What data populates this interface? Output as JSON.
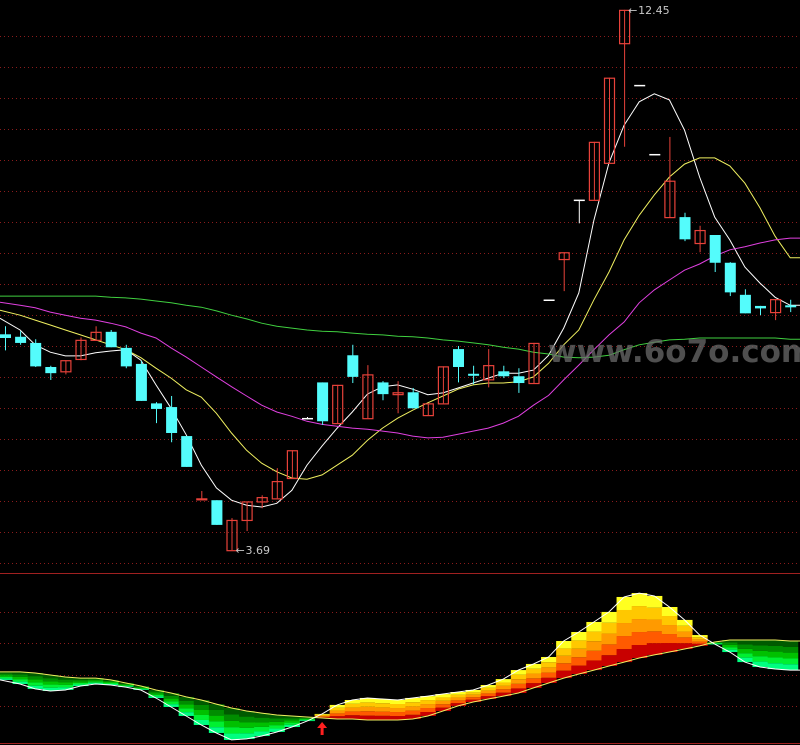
{
  "chart_data": [
    {
      "type": "candlestick",
      "ylim": [
        3.32,
        12.61
      ],
      "grid": true,
      "colors": {
        "up": "#e8423a",
        "down": "#54fcfc",
        "flat": "#ffffff",
        "grid": "#8a1c1c",
        "label": "#c8c8c8"
      },
      "annotations": [
        {
          "label": "12.45",
          "candle": 41,
          "price": 12.45,
          "arrow": "←"
        },
        {
          "label": "3.69",
          "candle": 15,
          "price": 3.69,
          "arrow": "←"
        }
      ],
      "ohlc_order": [
        "open",
        "high",
        "low",
        "close"
      ],
      "candles": [
        [
          7.19,
          7.32,
          6.93,
          7.13
        ],
        [
          7.15,
          7.24,
          7.02,
          7.05
        ],
        [
          7.05,
          7.11,
          6.66,
          6.67
        ],
        [
          6.66,
          6.68,
          6.45,
          6.56
        ],
        [
          6.59,
          6.77,
          6.54,
          6.77
        ],
        [
          6.79,
          7.14,
          6.77,
          7.1
        ],
        [
          7.1,
          7.32,
          7.1,
          7.23
        ],
        [
          7.23,
          7.26,
          6.98,
          6.98
        ],
        [
          6.97,
          7.02,
          6.64,
          6.67
        ],
        [
          6.71,
          6.76,
          6.11,
          6.11
        ],
        [
          6.07,
          6.09,
          5.75,
          5.98
        ],
        [
          6.01,
          6.19,
          5.44,
          5.59
        ],
        [
          5.54,
          5.54,
          5.04,
          5.04
        ],
        [
          4.52,
          4.65,
          4.52,
          4.53
        ],
        [
          4.5,
          4.5,
          4.1,
          4.1
        ],
        [
          3.69,
          4.21,
          3.69,
          4.18
        ],
        [
          4.18,
          4.48,
          4.0,
          4.48
        ],
        [
          4.48,
          4.58,
          4.37,
          4.55
        ],
        [
          4.53,
          5.02,
          4.53,
          4.81
        ],
        [
          4.86,
          5.31,
          4.86,
          5.31
        ],
        [
          5.83,
          5.85,
          5.81,
          5.83
        ],
        [
          6.41,
          6.41,
          5.72,
          5.78
        ],
        [
          5.75,
          6.37,
          5.75,
          6.37
        ],
        [
          6.85,
          7.02,
          6.4,
          6.5
        ],
        [
          5.83,
          6.69,
          5.83,
          6.54
        ],
        [
          6.41,
          6.43,
          6.12,
          6.22
        ],
        [
          6.22,
          6.43,
          5.91,
          6.25
        ],
        [
          6.25,
          6.32,
          5.99,
          5.99
        ],
        [
          5.88,
          6.07,
          5.88,
          6.07
        ],
        [
          6.07,
          6.67,
          6.07,
          6.67
        ],
        [
          6.95,
          7.0,
          6.41,
          6.66
        ],
        [
          6.55,
          6.68,
          6.38,
          6.53
        ],
        [
          6.46,
          6.95,
          6.33,
          6.69
        ],
        [
          6.59,
          6.68,
          6.48,
          6.51
        ],
        [
          6.51,
          6.64,
          6.24,
          6.4
        ],
        [
          6.4,
          7.05,
          6.4,
          7.05
        ],
        [
          7.75,
          7.75,
          7.75,
          7.75
        ],
        [
          8.41,
          8.52,
          7.89,
          8.52
        ],
        [
          9.37,
          9.37,
          8.99,
          9.37
        ],
        [
          9.37,
          10.31,
          9.37,
          10.31
        ],
        [
          9.97,
          11.35,
          9.97,
          11.35
        ],
        [
          11.91,
          12.45,
          10.23,
          12.45
        ],
        [
          11.23,
          11.23,
          11.23,
          11.23
        ],
        [
          10.11,
          10.11,
          10.11,
          10.11
        ],
        [
          9.09,
          10.39,
          9.09,
          9.68
        ],
        [
          9.09,
          9.16,
          8.7,
          8.73
        ],
        [
          8.67,
          8.95,
          8.52,
          8.88
        ],
        [
          8.8,
          8.8,
          8.2,
          8.35
        ],
        [
          8.35,
          8.36,
          7.81,
          7.87
        ],
        [
          7.83,
          7.92,
          7.53,
          7.53
        ],
        [
          7.65,
          7.65,
          7.5,
          7.61
        ],
        [
          7.55,
          7.76,
          7.42,
          7.76
        ],
        [
          7.66,
          7.75,
          7.55,
          7.65
        ]
      ],
      "lines": [
        {
          "color": "#ffffff",
          "values": [
            7.45,
            7.26,
            7.02,
            6.9,
            6.84,
            6.84,
            6.89,
            6.92,
            6.94,
            6.77,
            6.37,
            5.99,
            5.56,
            5.07,
            4.7,
            4.5,
            4.42,
            4.39,
            4.45,
            4.66,
            5.07,
            5.38,
            5.67,
            5.93,
            6.22,
            6.34,
            6.37,
            6.3,
            6.21,
            6.24,
            6.32,
            6.4,
            6.48,
            6.56,
            6.56,
            6.61,
            6.85,
            7.29,
            7.86,
            9.04,
            9.97,
            10.58,
            10.96,
            11.09,
            10.99,
            10.5,
            9.74,
            9.09,
            8.72,
            8.28,
            8.02,
            7.79,
            7.66
          ]
        },
        {
          "color": "#f0f060",
          "values": [
            7.58,
            7.5,
            7.42,
            7.34,
            7.26,
            7.18,
            7.1,
            7.02,
            6.94,
            6.81,
            6.64,
            6.48,
            6.29,
            6.17,
            5.91,
            5.59,
            5.31,
            5.1,
            4.96,
            4.86,
            4.84,
            4.91,
            5.07,
            5.23,
            5.47,
            5.67,
            5.83,
            5.96,
            6.08,
            6.19,
            6.3,
            6.37,
            6.4,
            6.4,
            6.42,
            6.5,
            6.72,
            7.02,
            7.26,
            7.75,
            8.2,
            8.72,
            9.12,
            9.45,
            9.74,
            9.95,
            10.05,
            10.05,
            9.92,
            9.64,
            9.24,
            8.78,
            8.43
          ]
        },
        {
          "color": "#e040e0",
          "values": [
            7.71,
            7.66,
            7.62,
            7.55,
            7.5,
            7.45,
            7.42,
            7.37,
            7.31,
            7.21,
            7.13,
            6.97,
            6.82,
            6.66,
            6.5,
            6.34,
            6.19,
            6.04,
            5.93,
            5.86,
            5.78,
            5.73,
            5.7,
            5.67,
            5.65,
            5.62,
            5.59,
            5.54,
            5.51,
            5.52,
            5.57,
            5.62,
            5.67,
            5.75,
            5.86,
            6.04,
            6.2,
            6.45,
            6.69,
            6.94,
            7.18,
            7.39,
            7.7,
            7.91,
            8.07,
            8.23,
            8.33,
            8.46,
            8.56,
            8.61,
            8.67,
            8.72,
            8.75
          ]
        },
        {
          "color": "#40d040",
          "values": [
            7.81,
            7.81,
            7.81,
            7.81,
            7.81,
            7.81,
            7.81,
            7.79,
            7.78,
            7.76,
            7.73,
            7.7,
            7.66,
            7.63,
            7.57,
            7.5,
            7.44,
            7.37,
            7.32,
            7.29,
            7.26,
            7.24,
            7.23,
            7.21,
            7.19,
            7.18,
            7.16,
            7.15,
            7.13,
            7.1,
            7.08,
            7.05,
            7.02,
            6.98,
            6.95,
            6.9,
            6.87,
            6.82,
            6.81,
            6.82,
            6.85,
            6.94,
            7.02,
            7.06,
            7.1,
            7.11,
            7.13,
            7.13,
            7.13,
            7.13,
            7.13,
            7.13,
            7.11
          ]
        }
      ]
    },
    {
      "type": "band",
      "ylim": [
        0,
        100
      ],
      "grid": true,
      "colors": {
        "fast_line": "#ffffff",
        "slow_line": "#f0f060",
        "bull": [
          "#c80000",
          "#ff5a00",
          "#ff9a00",
          "#ffc800",
          "#ffff20"
        ],
        "bear": [
          "#005a00",
          "#008c00",
          "#00c000",
          "#00f030",
          "#00ff80"
        ],
        "signal": "#ff2020"
      },
      "signal": {
        "candle": 21,
        "icon": "up-arrow-icon"
      },
      "fast": [
        37.1,
        34.7,
        31.8,
        30.6,
        31.2,
        33.5,
        34.7,
        34.1,
        32.9,
        31.2,
        26.5,
        21.2,
        15.9,
        10.6,
        5.9,
        1.8,
        2.4,
        4.1,
        6.5,
        9.4,
        12.9,
        17.1,
        22.4,
        25.3,
        26.5,
        25.9,
        25.3,
        26.5,
        27.6,
        28.8,
        30.0,
        31.2,
        34.1,
        37.6,
        42.9,
        46.5,
        50.6,
        60.0,
        65.3,
        71.2,
        77.1,
        85.9,
        88.2,
        86.5,
        80.0,
        72.4,
        63.5,
        58.2,
        53.5,
        47.6,
        44.7,
        43.5,
        42.9
      ],
      "slow": [
        41.8,
        41.8,
        41.2,
        40.0,
        38.8,
        38.2,
        38.2,
        37.1,
        35.3,
        33.5,
        31.2,
        29.4,
        27.1,
        25.3,
        22.9,
        20.6,
        18.8,
        17.6,
        16.5,
        15.9,
        15.3,
        14.7,
        14.1,
        14.1,
        13.5,
        13.5,
        13.5,
        14.1,
        15.9,
        18.8,
        21.8,
        24.1,
        25.9,
        27.6,
        29.4,
        32.4,
        35.3,
        38.2,
        40.6,
        42.9,
        45.3,
        47.6,
        50.0,
        51.8,
        53.5,
        55.3,
        57.1,
        59.4,
        60.6,
        60.6,
        60.6,
        60.6,
        60.0
      ]
    }
  ],
  "watermark": {
    "text": "www.6o7o.com",
    "color": "#6a6a6a"
  }
}
